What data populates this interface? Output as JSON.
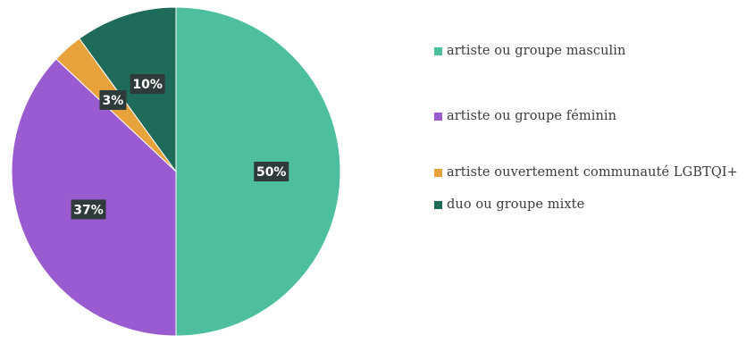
{
  "chart_data": {
    "type": "pie",
    "categories": [
      "artiste ou groupe masculin",
      "artiste ou groupe féminin",
      "artiste ouvertement communauté LGBTQI+",
      "duo ou groupe mixte"
    ],
    "values": [
      50,
      37,
      3,
      10
    ],
    "data_labels": [
      "50%",
      "37%",
      "3%",
      "10%"
    ],
    "colors": [
      "#4dbf9f",
      "#9a5bd1",
      "#e8a23b",
      "#1f6b5a"
    ],
    "legend_position": "right",
    "title": ""
  },
  "legend": {
    "items": [
      {
        "label": "artiste ou groupe masculin",
        "color": "#4dbf9f"
      },
      {
        "label": "artiste ou groupe féminin",
        "color": "#9a5bd1"
      },
      {
        "label": "artiste ouvertement communauté LGBTQI+",
        "color": "#e8a23b"
      },
      {
        "label": "duo ou groupe mixte",
        "color": "#1f6b5a"
      }
    ]
  }
}
